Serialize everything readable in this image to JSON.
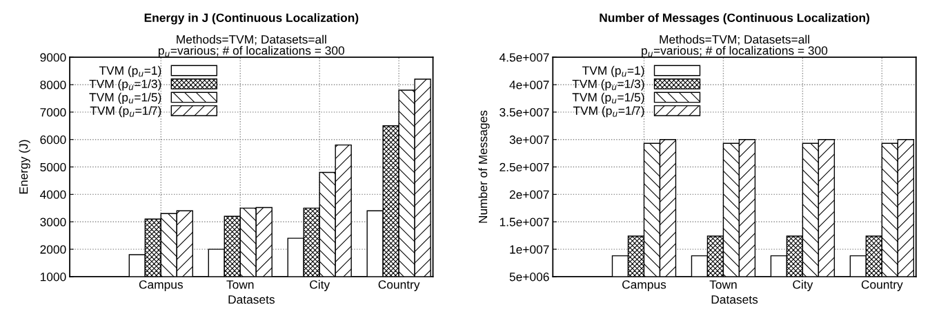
{
  "chart_data": [
    {
      "type": "bar",
      "title": "Energy in J (Continuous Localization)",
      "subtitle": "Methods=TVM; Datasets=all\np$_{u}$=various; # of localizations = 300",
      "xlabel": "Datasets",
      "ylabel": "Energy (J)",
      "categories": [
        "Campus",
        "Town",
        "City",
        "Country"
      ],
      "series": [
        {
          "name": "TVM (p$_{u}$=1)",
          "color": "#ffffff",
          "values": [
            1800,
            2000,
            2400,
            3400
          ]
        },
        {
          "name": "TVM (p$_{u}$=1/3)",
          "color": "#000000",
          "values": [
            3100,
            3200,
            3500,
            6500
          ]
        },
        {
          "name": "TVM (p$_{u}$=1/5)",
          "color": "#000000",
          "values": [
            3300,
            3500,
            4800,
            7800
          ]
        },
        {
          "name": "TVM (p$_{u}$=1/7)",
          "color": "#000000",
          "values": [
            3400,
            3520,
            5800,
            8200
          ]
        }
      ],
      "ylim": [
        1000,
        9000
      ],
      "yticks": [
        1000,
        2000,
        3000,
        4000,
        5000,
        6000,
        7000,
        8000,
        9000
      ],
      "grid": true,
      "legend": "top left"
    },
    {
      "type": "bar",
      "title": "Number of Messages (Continuous Localization)",
      "subtitle": "Methods=TVM; Datasets=all\np$_{u}$=various; # of localizations = 300",
      "xlabel": "Datasets",
      "ylabel": "Number of Messages",
      "categories": [
        "Campus",
        "Town",
        "City",
        "Country"
      ],
      "series": [
        {
          "name": "TVM (p$_{u}$=1)",
          "color": "#ffffff",
          "values": [
            8800000,
            8800000,
            8800000,
            8800000
          ]
        },
        {
          "name": "TVM (p$_{u}$=1/3)",
          "color": "#000000",
          "values": [
            12400000,
            12400000,
            12400000,
            12400000
          ]
        },
        {
          "name": "TVM (p$_{u}$=1/5)",
          "color": "#000000",
          "values": [
            29300000,
            29300000,
            29300000,
            29300000
          ]
        },
        {
          "name": "TVM (p$_{u}$=1/7)",
          "color": "#000000",
          "values": [
            30000000,
            30000000,
            30000000,
            30000000
          ]
        }
      ],
      "ylim": [
        5000000,
        45000000
      ],
      "yticks": [
        {
          "value": 5000000,
          "label": "5e+006"
        },
        {
          "value": 10000000,
          "label": "1e+007"
        },
        {
          "value": 15000000,
          "label": "1.5e+007"
        },
        {
          "value": 20000000,
          "label": "2e+007"
        },
        {
          "value": 25000000,
          "label": "2.5e+007"
        },
        {
          "value": 30000000,
          "label": "3e+007"
        },
        {
          "value": 35000000,
          "label": "3.5e+007"
        },
        {
          "value": 40000000,
          "label": "4e+007"
        },
        {
          "value": 45000000,
          "label": "4.5e+007"
        }
      ],
      "grid": true,
      "legend": "top left"
    }
  ]
}
